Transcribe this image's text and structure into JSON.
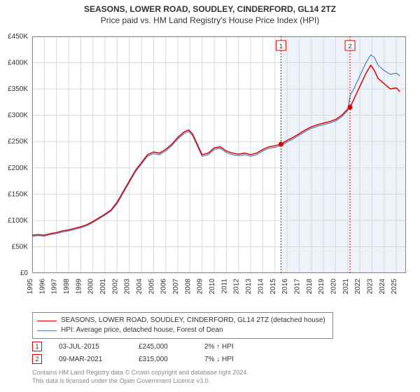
{
  "title": "SEASONS, LOWER ROAD, SOUDLEY, CINDERFORD, GL14 2TZ",
  "subtitle": "Price paid vs. HM Land Registry's House Price Index (HPI)",
  "chart": {
    "type": "line",
    "background_color": "#ffffff",
    "grid_color": "#d9d9d9",
    "border_color": "#888888",
    "axis_font_size": 10,
    "x": {
      "min": 1995,
      "max": 2025.8,
      "ticks": [
        1995,
        1996,
        1997,
        1998,
        1999,
        2000,
        2001,
        2002,
        2003,
        2004,
        2005,
        2006,
        2007,
        2008,
        2009,
        2010,
        2011,
        2012,
        2013,
        2014,
        2015,
        2016,
        2017,
        2018,
        2019,
        2020,
        2021,
        2022,
        2023,
        2024,
        2025
      ]
    },
    "y": {
      "min": 0,
      "max": 450000,
      "ticks": [
        0,
        50000,
        100000,
        150000,
        200000,
        250000,
        300000,
        350000,
        400000,
        450000
      ],
      "tick_labels": [
        "£0",
        "£50K",
        "£100K",
        "£150K",
        "£200K",
        "£250K",
        "£300K",
        "£350K",
        "£400K",
        "£450K"
      ]
    },
    "series": [
      {
        "name": "property",
        "label": "SEASONS, LOWER ROAD, SOUDLEY, CINDERFORD, GL14 2TZ (detached house)",
        "color": "#e00000",
        "line_width": 1.5,
        "data": [
          [
            1995.0,
            72000
          ],
          [
            1995.5,
            73000
          ],
          [
            1996.0,
            72000
          ],
          [
            1996.5,
            75000
          ],
          [
            1997.0,
            77000
          ],
          [
            1997.5,
            80000
          ],
          [
            1998.0,
            82000
          ],
          [
            1998.5,
            85000
          ],
          [
            1999.0,
            88000
          ],
          [
            1999.5,
            92000
          ],
          [
            2000.0,
            98000
          ],
          [
            2000.5,
            105000
          ],
          [
            2001.0,
            112000
          ],
          [
            2001.5,
            120000
          ],
          [
            2002.0,
            135000
          ],
          [
            2002.5,
            155000
          ],
          [
            2003.0,
            175000
          ],
          [
            2003.5,
            195000
          ],
          [
            2004.0,
            210000
          ],
          [
            2004.5,
            225000
          ],
          [
            2005.0,
            230000
          ],
          [
            2005.5,
            228000
          ],
          [
            2006.0,
            235000
          ],
          [
            2006.5,
            245000
          ],
          [
            2007.0,
            258000
          ],
          [
            2007.5,
            268000
          ],
          [
            2007.9,
            272000
          ],
          [
            2008.2,
            265000
          ],
          [
            2008.6,
            245000
          ],
          [
            2009.0,
            225000
          ],
          [
            2009.5,
            228000
          ],
          [
            2010.0,
            238000
          ],
          [
            2010.5,
            240000
          ],
          [
            2011.0,
            232000
          ],
          [
            2011.5,
            228000
          ],
          [
            2012.0,
            226000
          ],
          [
            2012.5,
            228000
          ],
          [
            2013.0,
            225000
          ],
          [
            2013.5,
            228000
          ],
          [
            2014.0,
            235000
          ],
          [
            2014.5,
            240000
          ],
          [
            2015.0,
            242000
          ],
          [
            2015.5,
            245000
          ],
          [
            2016.0,
            252000
          ],
          [
            2016.5,
            258000
          ],
          [
            2017.0,
            265000
          ],
          [
            2017.5,
            272000
          ],
          [
            2018.0,
            278000
          ],
          [
            2018.5,
            282000
          ],
          [
            2019.0,
            285000
          ],
          [
            2019.5,
            288000
          ],
          [
            2020.0,
            292000
          ],
          [
            2020.5,
            300000
          ],
          [
            2021.0,
            312000
          ],
          [
            2021.2,
            315000
          ],
          [
            2021.5,
            330000
          ],
          [
            2022.0,
            355000
          ],
          [
            2022.5,
            380000
          ],
          [
            2022.9,
            395000
          ],
          [
            2023.2,
            385000
          ],
          [
            2023.5,
            370000
          ],
          [
            2024.0,
            360000
          ],
          [
            2024.5,
            350000
          ],
          [
            2025.0,
            352000
          ],
          [
            2025.3,
            345000
          ]
        ]
      },
      {
        "name": "hpi",
        "label": "HPI: Average price, detached house, Forest of Dean",
        "color": "#4a7ebb",
        "line_width": 1.2,
        "data": [
          [
            1995.0,
            70000
          ],
          [
            1995.5,
            71000
          ],
          [
            1996.0,
            70000
          ],
          [
            1996.5,
            73000
          ],
          [
            1997.0,
            75000
          ],
          [
            1997.5,
            78000
          ],
          [
            1998.0,
            80000
          ],
          [
            1998.5,
            83000
          ],
          [
            1999.0,
            86000
          ],
          [
            1999.5,
            90000
          ],
          [
            2000.0,
            96000
          ],
          [
            2000.5,
            103000
          ],
          [
            2001.0,
            110000
          ],
          [
            2001.5,
            118000
          ],
          [
            2002.0,
            132000
          ],
          [
            2002.5,
            152000
          ],
          [
            2003.0,
            172000
          ],
          [
            2003.5,
            192000
          ],
          [
            2004.0,
            207000
          ],
          [
            2004.5,
            222000
          ],
          [
            2005.0,
            227000
          ],
          [
            2005.5,
            225000
          ],
          [
            2006.0,
            232000
          ],
          [
            2006.5,
            242000
          ],
          [
            2007.0,
            255000
          ],
          [
            2007.5,
            265000
          ],
          [
            2007.9,
            269000
          ],
          [
            2008.2,
            262000
          ],
          [
            2008.6,
            242000
          ],
          [
            2009.0,
            222000
          ],
          [
            2009.5,
            225000
          ],
          [
            2010.0,
            235000
          ],
          [
            2010.5,
            237000
          ],
          [
            2011.0,
            229000
          ],
          [
            2011.5,
            225000
          ],
          [
            2012.0,
            223000
          ],
          [
            2012.5,
            225000
          ],
          [
            2013.0,
            222000
          ],
          [
            2013.5,
            225000
          ],
          [
            2014.0,
            232000
          ],
          [
            2014.5,
            237000
          ],
          [
            2015.0,
            239000
          ],
          [
            2015.5,
            242000
          ],
          [
            2016.0,
            249000
          ],
          [
            2016.5,
            255000
          ],
          [
            2017.0,
            262000
          ],
          [
            2017.5,
            269000
          ],
          [
            2018.0,
            275000
          ],
          [
            2018.5,
            279000
          ],
          [
            2019.0,
            282000
          ],
          [
            2019.5,
            285000
          ],
          [
            2020.0,
            289000
          ],
          [
            2020.5,
            297000
          ],
          [
            2021.0,
            309000
          ],
          [
            2021.2,
            338000
          ],
          [
            2021.5,
            350000
          ],
          [
            2022.0,
            375000
          ],
          [
            2022.5,
            400000
          ],
          [
            2022.9,
            415000
          ],
          [
            2023.2,
            410000
          ],
          [
            2023.5,
            395000
          ],
          [
            2024.0,
            385000
          ],
          [
            2024.5,
            378000
          ],
          [
            2025.0,
            380000
          ],
          [
            2025.3,
            375000
          ]
        ]
      }
    ],
    "markers": [
      {
        "badge": "1",
        "x": 2015.5,
        "y": 245000,
        "date": "03-JUL-2015",
        "price": "£245,000",
        "delta": "2% ↑ HPI",
        "line_color": "#e00000",
        "dot_color": "#e00000",
        "shade_from": 2015.5,
        "shade_to": 2021.19
      },
      {
        "badge": "2",
        "x": 2021.19,
        "y": 315000,
        "date": "09-MAR-2021",
        "price": "£315,000",
        "delta": "7% ↓ HPI",
        "line_color": "#e00000",
        "dot_color": "#e00000",
        "shade_from": 2021.19,
        "shade_to": 2025.8
      }
    ],
    "shade_color": "#eef3fa"
  },
  "legend": {
    "border_color": "#888888"
  },
  "footer": {
    "line1": "Contains HM Land Registry data © Crown copyright and database right 2024.",
    "line2": "This data is licensed under the Open Government Licence v3.0."
  }
}
